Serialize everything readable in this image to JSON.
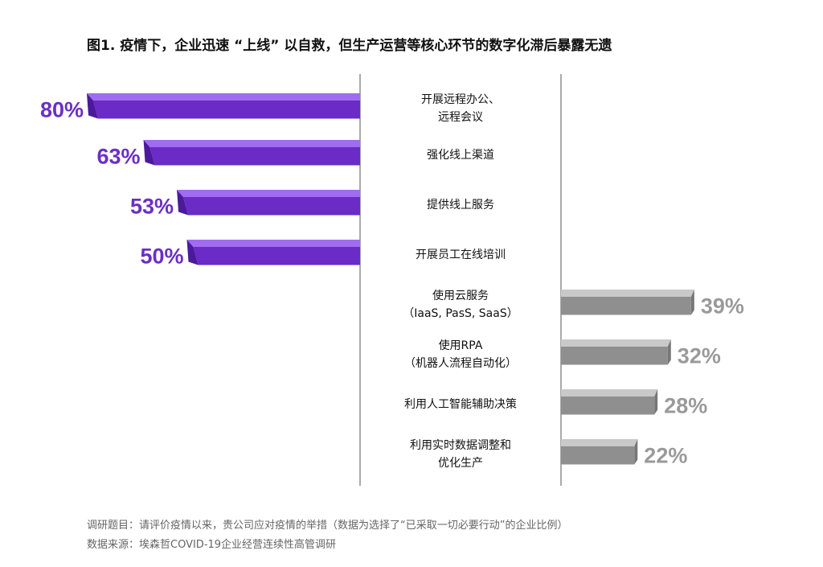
{
  "title": "图1. 疫情下，企业迅速 “上线” 以自救，但生产运营等核心环节的数字化滞后暴露无遗",
  "colors": {
    "purple_front": "#6a2bc6",
    "purple_top": "#a06cf0",
    "purple_end": "#4b1a9c",
    "purple_label": "#6b2fc4",
    "gray_front": "#8f8f8f",
    "gray_top": "#c9c9c9",
    "gray_end": "#777777",
    "gray_label": "#9a9a9a",
    "axis": "#555555"
  },
  "chart_data": {
    "type": "bar",
    "orientation": "diverging-horizontal",
    "value_suffix": "%",
    "xlim": [
      0,
      100
    ],
    "categories": [
      [
        "开展远程办公、",
        "远程会议"
      ],
      [
        "强化线上渠道"
      ],
      [
        "提供线上服务"
      ],
      [
        "开展员工在线培训"
      ],
      [
        "使用云服务",
        "（IaaS, PasS, SaaS）"
      ],
      [
        "使用RPA",
        "（机器人流程自动化）"
      ],
      [
        "利用人工智能辅助决策"
      ],
      [
        "利用实时数据调整和",
        "优化生产"
      ]
    ],
    "series": [
      {
        "side": "left",
        "values": [
          80,
          63,
          53,
          50,
          null,
          null,
          null,
          null
        ]
      },
      {
        "side": "right",
        "values": [
          null,
          null,
          null,
          null,
          39,
          32,
          28,
          22
        ]
      }
    ]
  },
  "notes": {
    "survey_question": "调研题目：请评价疫情以来，贵公司应对疫情的举措（数据为选择了“已采取一切必要行动”的企业比例）",
    "source": "数据来源：埃森哲COVID-19企业经营连续性高管调研"
  }
}
